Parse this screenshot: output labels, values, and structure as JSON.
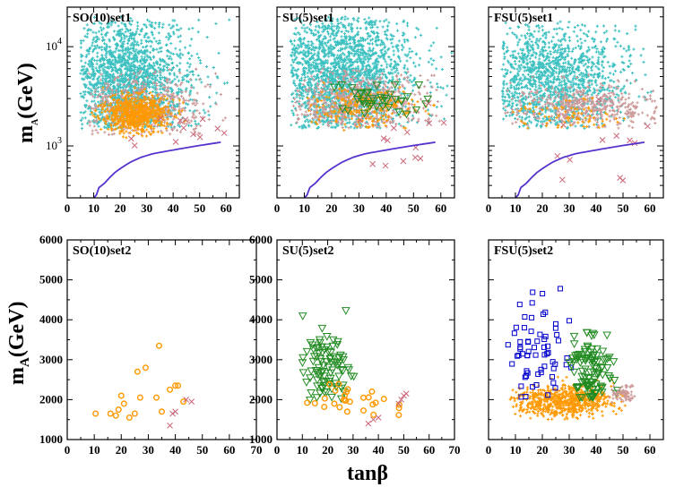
{
  "chart_data": [
    {
      "type": "scatter",
      "title": "SO(10)set1",
      "xlim": [
        0,
        65
      ],
      "scale": "log",
      "ylim": [
        300,
        25000
      ],
      "xticks": [
        0,
        10,
        20,
        30,
        40,
        50,
        60
      ],
      "yticks": [
        {
          "base": "10",
          "exp": "3",
          "value": 1000
        },
        {
          "base": "10",
          "exp": "4",
          "value": 10000
        }
      ],
      "curve": {
        "x": [
          10,
          11,
          12,
          14,
          16,
          18,
          20,
          22,
          24,
          26,
          28,
          30,
          32,
          34,
          36,
          38,
          40,
          42,
          44,
          46,
          48,
          50,
          52,
          54,
          56,
          58
        ],
        "y": [
          300,
          320,
          380,
          420,
          480,
          540,
          590,
          640,
          690,
          730,
          770,
          800,
          830,
          850,
          870,
          890,
          910,
          930,
          950,
          970,
          990,
          1010,
          1030,
          1050,
          1070,
          1090
        ]
      },
      "clouds": [
        {
          "series": "cyan",
          "color": "#3cc0c0",
          "n": 1700,
          "xr": [
            5,
            64
          ],
          "yr": [
            1500,
            20000
          ],
          "cx": 22,
          "cy": 4500,
          "sx": 12,
          "sy": 0.35
        },
        {
          "series": "pink",
          "color": "#cc9999",
          "n": 500,
          "xr": [
            8,
            60
          ],
          "yr": [
            1300,
            6000
          ],
          "cx": 28,
          "cy": 2500,
          "sx": 12,
          "sy": 0.18
        },
        {
          "series": "orange",
          "color": "#ff9900",
          "n": 700,
          "xr": [
            8,
            45
          ],
          "yr": [
            1200,
            4500
          ],
          "cx": 26,
          "cy": 2100,
          "sx": 6,
          "sy": 0.1
        },
        {
          "series": "crosses",
          "color": "#cc6677",
          "n": 12,
          "xr": [
            10,
            60
          ],
          "yr": [
            700,
            3500
          ],
          "cx": 35,
          "cy": 1500,
          "sx": 15,
          "sy": 0.2
        }
      ]
    },
    {
      "type": "scatter",
      "title": "SU(5)set1",
      "xlim": [
        0,
        65
      ],
      "scale": "log",
      "ylim": [
        300,
        25000
      ],
      "xticks": [
        0,
        10,
        20,
        30,
        40,
        50,
        60
      ],
      "curve": {
        "x": [
          10,
          11,
          12,
          14,
          16,
          18,
          20,
          22,
          24,
          26,
          28,
          30,
          32,
          34,
          36,
          38,
          40,
          42,
          44,
          46,
          48,
          50,
          52,
          54,
          56,
          58
        ],
        "y": [
          300,
          320,
          380,
          420,
          480,
          540,
          590,
          640,
          690,
          730,
          770,
          800,
          830,
          850,
          870,
          890,
          910,
          930,
          950,
          970,
          990,
          1010,
          1030,
          1050,
          1070,
          1090
        ]
      },
      "clouds": [
        {
          "series": "cyan",
          "color": "#3cc0c0",
          "n": 1900,
          "xr": [
            5,
            64
          ],
          "yr": [
            1500,
            20000
          ],
          "cx": 24,
          "cy": 5000,
          "sx": 13,
          "sy": 0.35
        },
        {
          "series": "pink",
          "color": "#cc9999",
          "n": 600,
          "xr": [
            6,
            60
          ],
          "yr": [
            1500,
            6000
          ],
          "cx": 30,
          "cy": 2800,
          "sx": 13,
          "sy": 0.15
        },
        {
          "series": "orange",
          "color": "#ff9900",
          "n": 220,
          "xr": [
            10,
            58
          ],
          "yr": [
            1400,
            4500
          ],
          "cx": 32,
          "cy": 2400,
          "sx": 10,
          "sy": 0.1
        },
        {
          "series": "green-triangles",
          "color": "#228b22",
          "n": 40,
          "xr": [
            18,
            60
          ],
          "yr": [
            1800,
            4500
          ],
          "cx": 35,
          "cy": 2900,
          "sx": 8,
          "sy": 0.08
        },
        {
          "series": "crosses",
          "color": "#cc6677",
          "n": 14,
          "xr": [
            10,
            62
          ],
          "yr": [
            600,
            3000
          ],
          "cx": 40,
          "cy": 1200,
          "sx": 15,
          "sy": 0.2
        }
      ]
    },
    {
      "type": "scatter",
      "title": "FSU(5)set1",
      "xlim": [
        0,
        65
      ],
      "scale": "log",
      "ylim": [
        300,
        25000
      ],
      "xticks": [
        0,
        10,
        20,
        30,
        40,
        50,
        60
      ],
      "curve": {
        "x": [
          10,
          11,
          12,
          14,
          16,
          18,
          20,
          22,
          24,
          26,
          28,
          30,
          32,
          34,
          36,
          38,
          40,
          42,
          44,
          46,
          48,
          50,
          52,
          54,
          56,
          58
        ],
        "y": [
          300,
          320,
          380,
          420,
          480,
          540,
          590,
          640,
          690,
          730,
          770,
          800,
          830,
          850,
          870,
          890,
          910,
          930,
          950,
          970,
          990,
          1010,
          1030,
          1050,
          1070,
          1090
        ]
      },
      "clouds": [
        {
          "series": "cyan",
          "color": "#3cc0c0",
          "n": 1300,
          "xr": [
            5,
            64
          ],
          "yr": [
            1500,
            18000
          ],
          "cx": 24,
          "cy": 4500,
          "sx": 13,
          "sy": 0.3
        },
        {
          "series": "pink",
          "color": "#cc9999",
          "n": 450,
          "xr": [
            6,
            64
          ],
          "yr": [
            1500,
            5500
          ],
          "cx": 35,
          "cy": 2500,
          "sx": 14,
          "sy": 0.12
        },
        {
          "series": "orange",
          "color": "#ff9900",
          "n": 80,
          "xr": [
            8,
            55
          ],
          "yr": [
            1500,
            3500
          ],
          "cx": 30,
          "cy": 2000,
          "sx": 10,
          "sy": 0.08
        },
        {
          "series": "crosses",
          "color": "#cc6677",
          "n": 12,
          "xr": [
            10,
            62
          ],
          "yr": [
            400,
            3000
          ],
          "cx": 40,
          "cy": 1200,
          "sx": 15,
          "sy": 0.25
        }
      ]
    },
    {
      "type": "scatter",
      "title": "SO(10)set2",
      "xlim": [
        0,
        70
      ],
      "scale": "linear",
      "ylim": [
        1000,
        6000
      ],
      "xticks": [
        0,
        10,
        20,
        30,
        40,
        50,
        60,
        70
      ],
      "yticks": [
        1000,
        2000,
        3000,
        4000,
        5000,
        6000
      ],
      "points": [
        {
          "series": "orange-octagons",
          "color": "#ff9900",
          "x": [
            10.5,
            16,
            18,
            19,
            20,
            21,
            23,
            25,
            26,
            27,
            29,
            33,
            34,
            35,
            38,
            40,
            41,
            43
          ],
          "y": [
            1650,
            1650,
            1600,
            1750,
            2100,
            1900,
            1550,
            1650,
            2700,
            2050,
            2800,
            2050,
            3350,
            1700,
            2250,
            2350,
            2350,
            1950
          ]
        },
        {
          "series": "crosses",
          "color": "#cc6677",
          "x": [
            38,
            39,
            40,
            44,
            46
          ],
          "y": [
            1350,
            1650,
            1700,
            2000,
            1950
          ]
        }
      ]
    },
    {
      "type": "scatter",
      "title": "SU(5)set2",
      "xlim": [
        0,
        70
      ],
      "scale": "linear",
      "ylim": [
        1000,
        6000
      ],
      "xticks": [
        0,
        10,
        20,
        30,
        40,
        50,
        60,
        70
      ],
      "yticks": [
        1000,
        2000,
        3000,
        4000,
        5000,
        6000
      ],
      "clouds": [
        {
          "series": "green-triangles",
          "color": "#228b22",
          "n": 90,
          "xr": [
            10,
            32
          ],
          "yr": [
            1900,
            4400
          ],
          "cx": 19,
          "cy": 2700,
          "sx": 5,
          "sy": 500
        },
        {
          "series": "orange-octagons",
          "color": "#ff9900",
          "n": 28,
          "xr": [
            10,
            52
          ],
          "yr": [
            1500,
            2600
          ],
          "cx": 30,
          "cy": 1950,
          "sx": 13,
          "sy": 250
        }
      ],
      "points": [
        {
          "series": "crosses",
          "color": "#cc6677",
          "x": [
            36,
            38,
            40,
            48,
            49,
            50,
            51
          ],
          "y": [
            1400,
            1500,
            1550,
            1900,
            2000,
            2100,
            2150
          ]
        }
      ]
    },
    {
      "type": "scatter",
      "title": "FSU(5)set2",
      "xlim": [
        0,
        65
      ],
      "scale": "linear",
      "ylim": [
        1000,
        6000
      ],
      "xticks": [
        0,
        10,
        20,
        30,
        40,
        50,
        60
      ],
      "clouds": [
        {
          "series": "orange",
          "color": "#ff9900",
          "n": 700,
          "xr": [
            8,
            52
          ],
          "yr": [
            1500,
            2600
          ],
          "cx": 28,
          "cy": 1950,
          "sx": 10,
          "sy": 200
        },
        {
          "series": "blue-squares",
          "color": "#0000cc",
          "n": 65,
          "xr": [
            7,
            34
          ],
          "yr": [
            2000,
            5000
          ],
          "cx": 18,
          "cy": 3000,
          "sx": 6,
          "sy": 800
        },
        {
          "series": "green-triangles",
          "color": "#228b22",
          "n": 110,
          "xr": [
            30,
            50
          ],
          "yr": [
            2000,
            4200
          ],
          "cx": 38,
          "cy": 2700,
          "sx": 5,
          "sy": 500
        },
        {
          "series": "pink",
          "color": "#cc9999",
          "n": 70,
          "xr": [
            44,
            55
          ],
          "yr": [
            1900,
            2400
          ],
          "cx": 50,
          "cy": 2150,
          "sx": 2.5,
          "sy": 120
        }
      ]
    }
  ],
  "labels": {
    "ylabel_base": "m",
    "ylabel_sub": "A",
    "ylabel_unit": "(GeV)",
    "xlabel": "tanβ"
  }
}
